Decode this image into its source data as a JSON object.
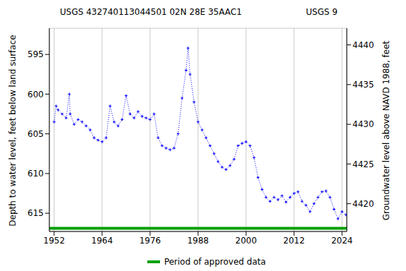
{
  "chart_data": {
    "type": "line",
    "title": "USGS 432740113044501 02N 28E 35AAC1",
    "subtitle": "USGS 9",
    "y_label": "Depth to water level, feet below land surface",
    "y2_label": "Groundwater level above NAVD 1988, feet",
    "xlim": [
      1950.8,
      2025.2
    ],
    "xticks": [
      1952,
      1964,
      1976,
      1988,
      2000,
      2012,
      2024
    ],
    "ylim": [
      591.7,
      617.3
    ],
    "yticks": [
      595,
      600,
      605,
      610,
      615
    ],
    "y2lim": [
      4416.5,
      4442.1
    ],
    "y2ticks": [
      4420,
      4425,
      4430,
      4435,
      4440
    ],
    "grid": true,
    "series": [
      {
        "color": "#0000ff",
        "marker": "plus",
        "line_style": "dotted",
        "x": [
          1952,
          1952.5,
          1953,
          1954,
          1955,
          1955.8,
          1956,
          1957,
          1958,
          1959,
          1960,
          1961,
          1962,
          1963,
          1964,
          1965,
          1966,
          1967,
          1968,
          1969,
          1970,
          1971,
          1972,
          1973,
          1974,
          1975,
          1976,
          1977,
          1978,
          1979,
          1980,
          1981,
          1982,
          1983,
          1984,
          1985,
          1985.5,
          1986,
          1987,
          1988,
          1989,
          1990,
          1991,
          1992,
          1993,
          1994,
          1995,
          1996,
          1997,
          1998,
          1999,
          2000,
          2001,
          2002,
          2003,
          2004,
          2005,
          2006,
          2007,
          2008,
          2009,
          2010,
          2011,
          2012,
          2013,
          2014,
          2015,
          2016,
          2017,
          2018,
          2019,
          2020,
          2021,
          2022,
          2023,
          2024,
          2025
        ],
        "values": [
          603.5,
          601.5,
          602,
          602.5,
          603,
          600,
          602.5,
          603.8,
          603.2,
          603.5,
          604,
          604.5,
          605.5,
          605.8,
          606,
          605.5,
          601.5,
          603.5,
          604,
          603.2,
          600.2,
          602.5,
          603,
          602.2,
          602.8,
          603,
          603.2,
          602.5,
          605.5,
          606.5,
          606.8,
          607,
          606.8,
          605,
          600.5,
          597,
          594.2,
          597.5,
          601,
          603.5,
          604.5,
          605.5,
          606.5,
          607.5,
          608.5,
          609.2,
          609.5,
          609,
          608.2,
          606.5,
          606.2,
          606,
          606.5,
          608,
          610.5,
          612,
          613,
          613.5,
          613,
          613.3,
          612.8,
          613.6,
          613,
          612.5,
          612.3,
          613.5,
          614,
          614.8,
          613.8,
          613,
          612.3,
          612.2,
          613,
          614.5,
          615.7,
          614.8,
          615.2
        ]
      },
      {
        "name": "Period of approved data",
        "color": "#00a000",
        "line_style": "solid",
        "x": [
          1950.8,
          2025.2
        ],
        "values": [
          616.9,
          616.9
        ]
      }
    ]
  }
}
